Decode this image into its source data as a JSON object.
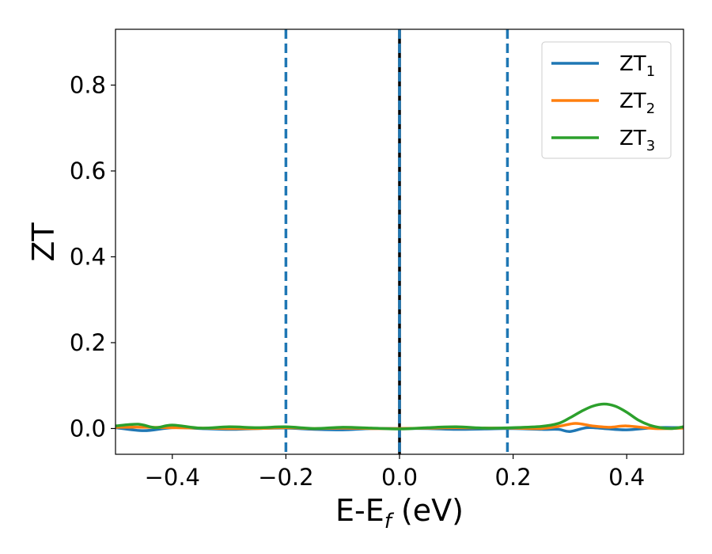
{
  "chart_data": {
    "type": "line",
    "title": "",
    "xlabel_parts": {
      "main": "E-E",
      "sub": "f",
      "rest": " (eV)"
    },
    "ylabel": "ZT",
    "xlim": [
      -0.5,
      0.5
    ],
    "ylim": [
      -0.06,
      0.93
    ],
    "xticks": [
      -0.4,
      -0.2,
      0.0,
      0.2,
      0.4
    ],
    "xtick_labels": [
      "−0.4",
      "−0.2",
      "0.0",
      "0.2",
      "0.4"
    ],
    "yticks": [
      0.0,
      0.2,
      0.4,
      0.6,
      0.8
    ],
    "ytick_labels": [
      "0.0",
      "0.2",
      "0.4",
      "0.6",
      "0.8"
    ],
    "grid": false,
    "legend_position": "top-right",
    "vlines": [
      {
        "x": -0.2,
        "style": "dashed",
        "color": "#1f77b4"
      },
      {
        "x": 0.0,
        "style": "solid",
        "color": "#000000"
      },
      {
        "x": 0.0,
        "style": "dashed",
        "color": "#1f77b4"
      },
      {
        "x": 0.19,
        "style": "dashed",
        "color": "#1f77b4"
      }
    ],
    "series": [
      {
        "name_main": "ZT",
        "name_sub": "1",
        "color": "#1f77b4",
        "x": [
          -0.5,
          -0.45,
          -0.4,
          -0.35,
          -0.3,
          -0.25,
          -0.2,
          -0.15,
          -0.1,
          -0.05,
          0.0,
          0.05,
          0.1,
          0.15,
          0.2,
          0.25,
          0.28,
          0.3,
          0.33,
          0.36,
          0.4,
          0.45,
          0.5
        ],
        "y": [
          0.002,
          -0.005,
          0.002,
          0.0,
          -0.002,
          0.0,
          0.001,
          -0.002,
          -0.003,
          0.0,
          0.0,
          0.0,
          -0.002,
          -0.001,
          0.0,
          -0.002,
          -0.002,
          -0.007,
          0.002,
          0.0,
          -0.003,
          0.002,
          0.002
        ]
      },
      {
        "name_main": "ZT",
        "name_sub": "2",
        "color": "#ff7f0e",
        "x": [
          -0.5,
          -0.45,
          -0.4,
          -0.35,
          -0.3,
          -0.25,
          -0.2,
          -0.15,
          -0.1,
          -0.05,
          0.0,
          0.05,
          0.1,
          0.15,
          0.2,
          0.25,
          0.28,
          0.31,
          0.34,
          0.37,
          0.4,
          0.45,
          0.5
        ],
        "y": [
          0.003,
          0.003,
          0.002,
          0.001,
          0.0,
          0.0,
          0.002,
          0.0,
          0.001,
          0.0,
          0.0,
          0.001,
          0.002,
          0.001,
          0.001,
          0.0,
          0.005,
          0.012,
          0.006,
          0.003,
          0.006,
          0.0,
          0.001
        ]
      },
      {
        "name_main": "ZT",
        "name_sub": "3",
        "color": "#2ca02c",
        "x": [
          -0.5,
          -0.46,
          -0.43,
          -0.4,
          -0.35,
          -0.3,
          -0.25,
          -0.2,
          -0.15,
          -0.1,
          -0.05,
          0.0,
          0.05,
          0.1,
          0.15,
          0.2,
          0.25,
          0.28,
          0.3,
          0.32,
          0.34,
          0.36,
          0.38,
          0.4,
          0.42,
          0.44,
          0.46,
          0.48,
          0.5
        ],
        "y": [
          0.006,
          0.01,
          0.002,
          0.008,
          0.001,
          0.004,
          0.002,
          0.004,
          0.0,
          0.003,
          0.001,
          -0.001,
          0.002,
          0.004,
          0.001,
          0.002,
          0.005,
          0.012,
          0.025,
          0.04,
          0.052,
          0.057,
          0.052,
          0.038,
          0.02,
          0.008,
          0.002,
          0.0,
          0.004
        ]
      }
    ]
  }
}
